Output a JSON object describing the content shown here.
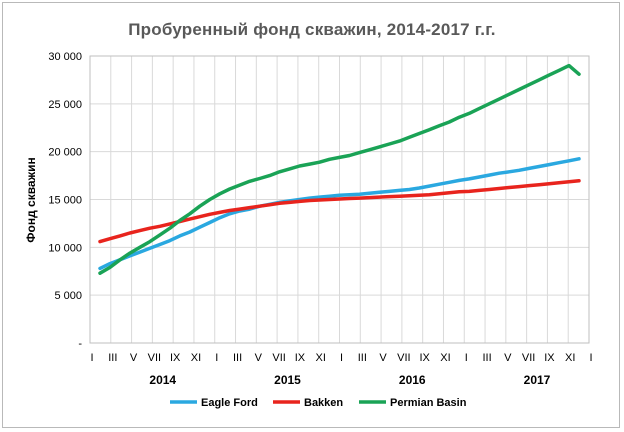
{
  "chart_data": {
    "type": "line",
    "title": "Пробуренный  фонд  скважин,  2014-2017 г.г.",
    "xlabel": "",
    "ylabel": "Фонд скважин",
    "ylim": [
      0,
      30000
    ],
    "yticks": [
      0,
      5000,
      10000,
      15000,
      20000,
      25000,
      30000
    ],
    "ytick_labels": [
      "-",
      "5 000",
      "10 000",
      "15 000",
      "20 000",
      "25 000",
      "30 000"
    ],
    "x_tick_labels": [
      "I",
      "III",
      "V",
      "VII",
      "IX",
      "XI",
      "I",
      "III",
      "V",
      "VII",
      "IX",
      "XI",
      "I",
      "III",
      "V",
      "VII",
      "IX",
      "XI",
      "I",
      "III",
      "V",
      "VII",
      "IX",
      "XI",
      "I"
    ],
    "years": [
      "2014",
      "2015",
      "2016",
      "2017"
    ],
    "grid": true,
    "legend_position": "bottom",
    "series": [
      {
        "name": "Eagle Ford",
        "color": "#2aa8e0",
        "values": [
          7800,
          8300,
          8700,
          9100,
          9500,
          9900,
          10300,
          10700,
          11200,
          11600,
          12100,
          12600,
          13100,
          13500,
          13800,
          14000,
          14300,
          14500,
          14700,
          14850,
          15000,
          15150,
          15250,
          15350,
          15450,
          15500,
          15550,
          15650,
          15750,
          15850,
          15950,
          16050,
          16200,
          16400,
          16600,
          16800,
          17000,
          17150,
          17350,
          17550,
          17750,
          17900,
          18050,
          18250,
          18450,
          18650,
          18850,
          19050,
          19250
        ]
      },
      {
        "name": "Bakken",
        "color": "#e8241d",
        "values": [
          10600,
          10900,
          11200,
          11500,
          11750,
          12000,
          12200,
          12450,
          12700,
          12950,
          13200,
          13450,
          13650,
          13850,
          14000,
          14150,
          14300,
          14450,
          14600,
          14700,
          14800,
          14900,
          14950,
          15000,
          15050,
          15100,
          15150,
          15200,
          15250,
          15300,
          15350,
          15400,
          15450,
          15500,
          15600,
          15700,
          15800,
          15850,
          15950,
          16050,
          16150,
          16250,
          16350,
          16450,
          16550,
          16650,
          16750,
          16850,
          16950
        ]
      },
      {
        "name": "Permian Basin",
        "color": "#1aa356",
        "values": [
          7300,
          7900,
          8700,
          9400,
          10000,
          10600,
          11300,
          12000,
          12800,
          13500,
          14300,
          15000,
          15600,
          16100,
          16500,
          16900,
          17200,
          17500,
          17900,
          18200,
          18500,
          18700,
          18900,
          19200,
          19400,
          19600,
          19900,
          20200,
          20500,
          20800,
          21100,
          21500,
          21900,
          22300,
          22700,
          23100,
          23600,
          24000,
          24500,
          25000,
          25500,
          26000,
          26500,
          27000,
          27500,
          28000,
          28500,
          29000,
          28100
        ]
      }
    ]
  }
}
